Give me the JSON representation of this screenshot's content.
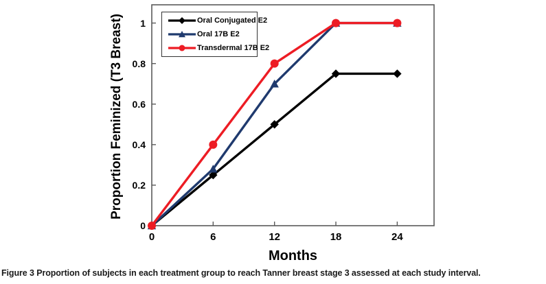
{
  "chart_data": {
    "type": "line",
    "title": "",
    "xlabel": "Months",
    "ylabel": "Proportion Feminized (T3 Breast)",
    "x": [
      0,
      6,
      12,
      18,
      24
    ],
    "x_tick_labels": [
      "0",
      "6",
      "12",
      "18",
      "24"
    ],
    "y_ticks": [
      0,
      0.2,
      0.4,
      0.6,
      0.8,
      1
    ],
    "y_tick_labels": [
      "0",
      "0.2",
      "0.4",
      "0.6",
      "0.8",
      "1"
    ],
    "xlim": [
      0,
      27.6
    ],
    "ylim": [
      0,
      1.09
    ],
    "grid": false,
    "legend_position": "top-left-inside",
    "frame_color": "#595959",
    "series": [
      {
        "name": "Oral Conjugated E2",
        "color": "#000000",
        "marker": "diamond",
        "values": [
          0,
          0.25,
          0.5,
          0.75,
          0.75
        ]
      },
      {
        "name": "Oral 17B E2",
        "color": "#1f3a6e",
        "marker": "triangle",
        "values": [
          0,
          0.28,
          0.7,
          1,
          1
        ]
      },
      {
        "name": "Transdermal 17B E2",
        "color": "#ed1c24",
        "marker": "circle",
        "values": [
          0,
          0.4,
          0.8,
          1,
          1
        ]
      }
    ]
  },
  "caption": {
    "label": "Figure 3",
    "text": " Proportion of subjects in each treatment group to reach Tanner breast stage 3 assessed at each study interval."
  }
}
